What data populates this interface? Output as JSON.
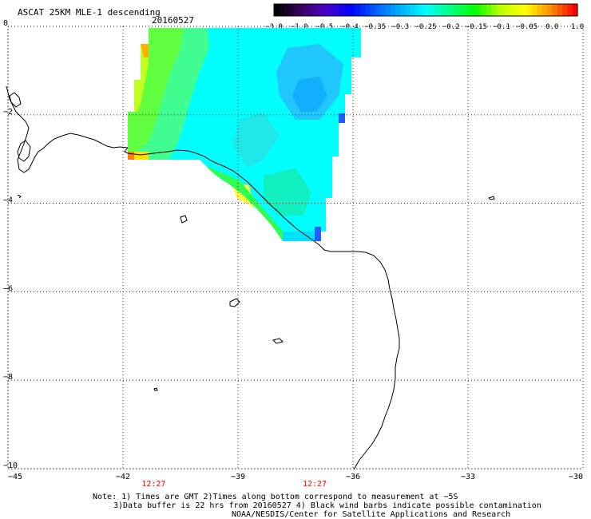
{
  "header": {
    "title": "ASCAT 25KM MLE-1 descending",
    "date": "20160527"
  },
  "colorbar": {
    "stops": [
      "#000000",
      "#3a0060",
      "#4b00c8",
      "#0000ff",
      "#0060ff",
      "#00b0ff",
      "#00ffff",
      "#00ff80",
      "#00ff00",
      "#c0ff00",
      "#ffff00",
      "#ff9000",
      "#ff0000"
    ],
    "labels": [
      "−3.0",
      "−1.0",
      "−0.5",
      "−0.4",
      "−0.35",
      "−0.3",
      "−0.25",
      "−0.2",
      "−0.15",
      "−0.1",
      "−0.05",
      "0.0",
      "1.0"
    ]
  },
  "map": {
    "lon_range": [
      -45,
      -30
    ],
    "lat_range": [
      -10,
      0
    ],
    "x_ticks": [
      "−45",
      "−42",
      "−39",
      "−36",
      "−33",
      "−30"
    ],
    "y_ticks": [
      "0",
      "−2",
      "−4",
      "−6",
      "−8",
      "−10"
    ],
    "times": [
      {
        "label": "12:27",
        "lon": -41.2
      },
      {
        "label": "12:27",
        "lon": -37.0
      }
    ],
    "time_color": "#ff0000"
  },
  "footer": {
    "line1": "Note: 1) Times are GMT 2)Times along bottom correspond to measurement at −5S",
    "line2": "3)Data buffer is 22 hrs from 20160527 4) Black wind barbs indicate possible contamination",
    "line3": "NOAA/NESDIS/Center for Satellite Applications and Research"
  }
}
